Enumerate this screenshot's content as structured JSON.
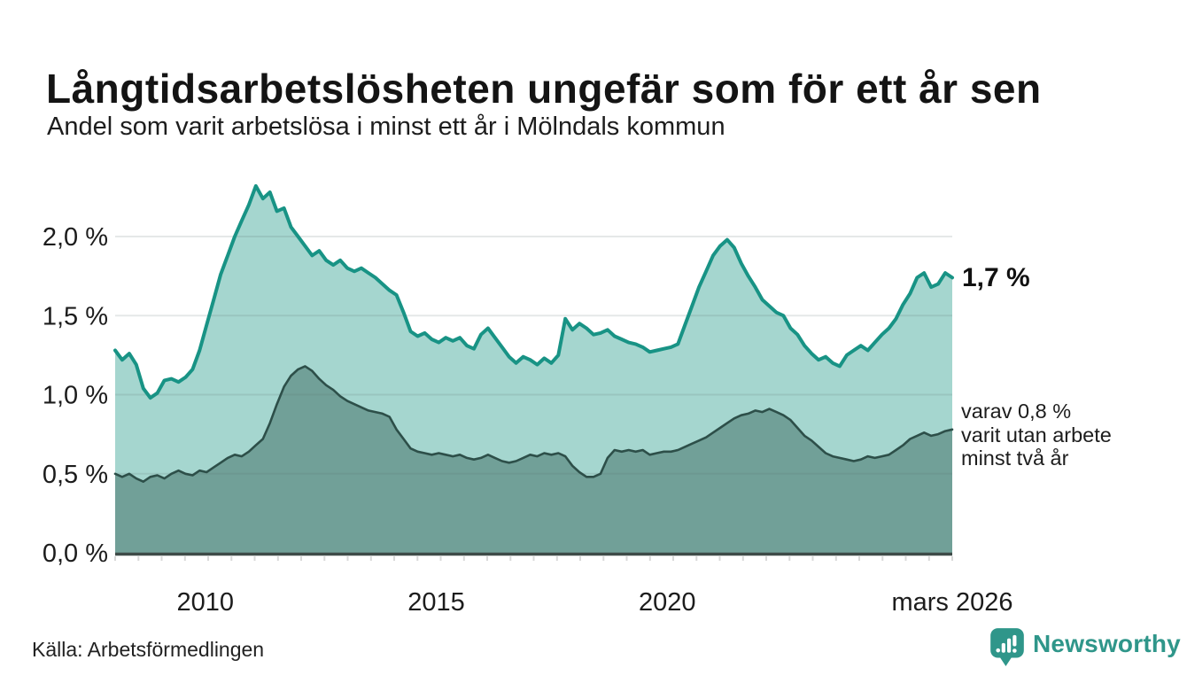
{
  "chart_data": {
    "type": "area",
    "title": "Långtidsarbetslösheten ungefär som för ett år sen",
    "subtitle": "Andel som varit arbetslösa i minst ett år i Mölndals kommun",
    "x_start": 2008.05,
    "x_end": 2026.17,
    "ylim": [
      0,
      2.4
    ],
    "grid": true,
    "x_ticks": [
      {
        "year": 2010,
        "label": "2010"
      },
      {
        "year": 2015,
        "label": "2015"
      },
      {
        "year": 2020,
        "label": "2020"
      },
      {
        "year": 2026.17,
        "label": "mars 2026"
      }
    ],
    "y_ticks": [
      {
        "value": 0.0,
        "label": "0,0 %"
      },
      {
        "value": 0.5,
        "label": "0,5 %"
      },
      {
        "value": 1.0,
        "label": "1,0 %"
      },
      {
        "value": 1.5,
        "label": "1,5 %"
      },
      {
        "value": 2.0,
        "label": "2,0 %"
      }
    ],
    "series": [
      {
        "name": "Andel arbetslösa minst ett år",
        "line_color": "#189385",
        "fill_color": "#a5d6cf",
        "line_width": 4,
        "end_value_label": "1,7 %",
        "values": [
          1.28,
          1.22,
          1.26,
          1.19,
          1.04,
          0.98,
          1.01,
          1.09,
          1.1,
          1.08,
          1.11,
          1.16,
          1.28,
          1.44,
          1.6,
          1.76,
          1.88,
          2.0,
          2.1,
          2.2,
          2.32,
          2.24,
          2.28,
          2.16,
          2.18,
          2.06,
          2.0,
          1.94,
          1.88,
          1.91,
          1.85,
          1.82,
          1.85,
          1.8,
          1.78,
          1.8,
          1.77,
          1.74,
          1.7,
          1.66,
          1.63,
          1.52,
          1.4,
          1.37,
          1.39,
          1.35,
          1.33,
          1.36,
          1.34,
          1.36,
          1.31,
          1.29,
          1.38,
          1.42,
          1.36,
          1.3,
          1.24,
          1.2,
          1.24,
          1.22,
          1.19,
          1.23,
          1.2,
          1.25,
          1.48,
          1.41,
          1.45,
          1.42,
          1.38,
          1.39,
          1.41,
          1.37,
          1.35,
          1.33,
          1.32,
          1.3,
          1.27,
          1.28,
          1.29,
          1.3,
          1.32,
          1.44,
          1.56,
          1.68,
          1.78,
          1.88,
          1.94,
          1.98,
          1.93,
          1.83,
          1.75,
          1.68,
          1.6,
          1.56,
          1.52,
          1.5,
          1.42,
          1.38,
          1.31,
          1.26,
          1.22,
          1.24,
          1.2,
          1.18,
          1.25,
          1.28,
          1.31,
          1.28,
          1.33,
          1.38,
          1.42,
          1.48,
          1.57,
          1.64,
          1.74,
          1.77,
          1.68,
          1.7,
          1.77,
          1.74
        ]
      },
      {
        "name": "varav utan arbete minst två år",
        "line_color": "#2d4f49",
        "fill_color": "#71a098",
        "line_width": 2.6,
        "end_value_label": "varav 0,8 %",
        "values": [
          0.5,
          0.48,
          0.5,
          0.47,
          0.45,
          0.48,
          0.49,
          0.47,
          0.5,
          0.52,
          0.5,
          0.49,
          0.52,
          0.51,
          0.54,
          0.57,
          0.6,
          0.62,
          0.61,
          0.64,
          0.68,
          0.72,
          0.82,
          0.94,
          1.05,
          1.12,
          1.16,
          1.18,
          1.15,
          1.1,
          1.06,
          1.03,
          0.99,
          0.96,
          0.94,
          0.92,
          0.9,
          0.89,
          0.88,
          0.86,
          0.78,
          0.72,
          0.66,
          0.64,
          0.63,
          0.62,
          0.63,
          0.62,
          0.61,
          0.62,
          0.6,
          0.59,
          0.6,
          0.62,
          0.6,
          0.58,
          0.57,
          0.58,
          0.6,
          0.62,
          0.61,
          0.63,
          0.62,
          0.63,
          0.61,
          0.55,
          0.51,
          0.48,
          0.48,
          0.5,
          0.6,
          0.65,
          0.64,
          0.65,
          0.64,
          0.65,
          0.62,
          0.63,
          0.64,
          0.64,
          0.65,
          0.67,
          0.69,
          0.71,
          0.73,
          0.76,
          0.79,
          0.82,
          0.85,
          0.87,
          0.88,
          0.9,
          0.89,
          0.91,
          0.89,
          0.87,
          0.84,
          0.79,
          0.74,
          0.71,
          0.67,
          0.63,
          0.61,
          0.6,
          0.59,
          0.58,
          0.59,
          0.61,
          0.6,
          0.61,
          0.62,
          0.65,
          0.68,
          0.72,
          0.74,
          0.76,
          0.74,
          0.75,
          0.77,
          0.78
        ]
      }
    ],
    "annotations": {
      "end_label_series1": "1,7 %",
      "end_label_series2_lines": [
        "varav 0,8 %",
        "varit utan arbete",
        "minst två år"
      ]
    }
  },
  "palette": {
    "series1_line": "#189385",
    "series1_fill": "#a5d6cf",
    "series2_line": "#2d4f49",
    "series2_fill": "#71a098",
    "axis_line": "#3e4b48",
    "grid_overlay": "rgba(95,115,110,0.16)",
    "tick_mark": "#d9d9d9",
    "text": "#1c1c1c",
    "brand_teal": "#2f968a"
  },
  "footer": {
    "source": "Källa: Arbetsförmedlingen",
    "brand": "Newsworthy"
  }
}
